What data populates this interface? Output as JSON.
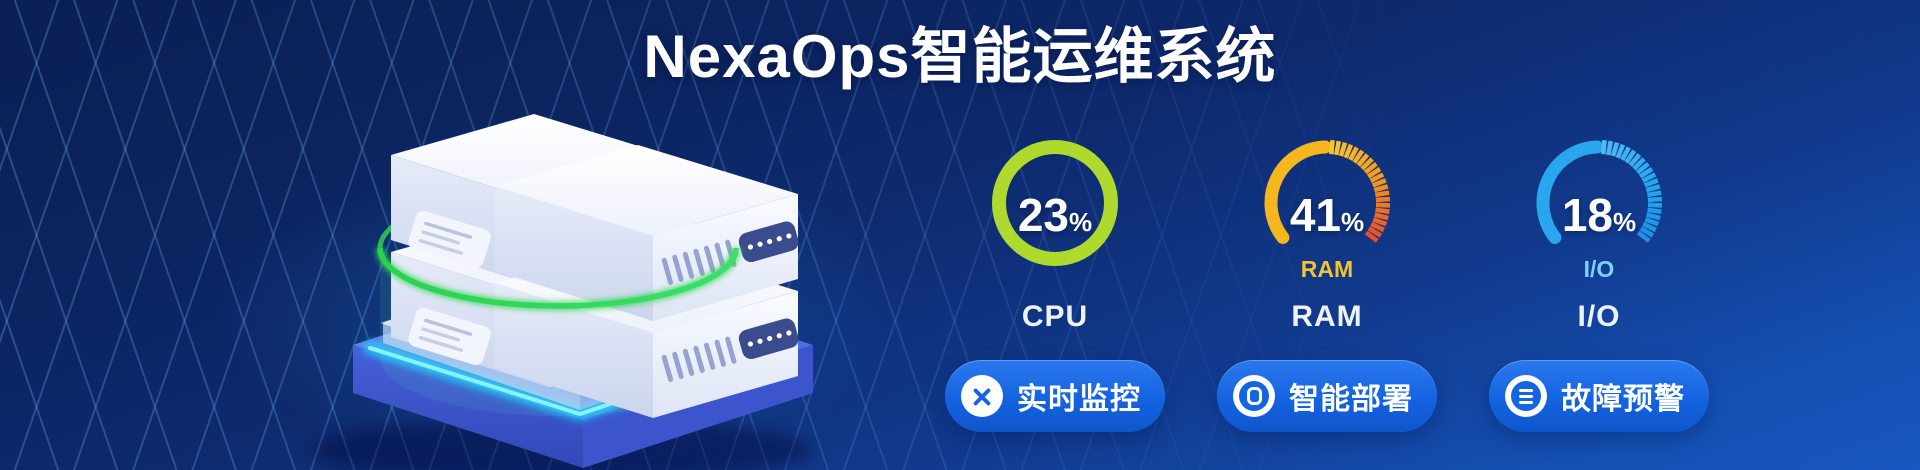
{
  "title": "NexaOps智能运维系统",
  "chart_data": {
    "type": "gauge-set",
    "legend_position": "below",
    "gauges": [
      {
        "label": "CPU",
        "value": 23,
        "unit": "%",
        "style": "ring",
        "color": "#aeda2e",
        "sub_label": "",
        "sub_color": ""
      },
      {
        "label": "RAM",
        "value": 41,
        "unit": "%",
        "style": "speedo",
        "color": "#f5b71d",
        "tick_colors": [
          "#f7c62a",
          "#f3961f",
          "#e84e2a"
        ],
        "sub_label": "RAM",
        "sub_color": "#f4c42c"
      },
      {
        "label": "I/O",
        "value": 18,
        "unit": "%",
        "style": "speedo",
        "color": "#2aa6ef",
        "tick_colors": [
          "#4db9f4",
          "#2aa6ef",
          "#1f90e2"
        ],
        "sub_label": "I/O",
        "sub_color": "#7fd0f8"
      }
    ]
  },
  "buttons": [
    {
      "label": "实时监控",
      "icon": "close-icon"
    },
    {
      "label": "智能部署",
      "icon": "target-icon"
    },
    {
      "label": "故障预警",
      "icon": "list-icon"
    }
  ],
  "illustration": {
    "name": "server-stack-on-glowing-platform",
    "ring_color": "#35d952",
    "platform_glow_color": "#19dcff"
  },
  "colors": {
    "background_top": "#0a1f54",
    "background_bottom": "#1857c0",
    "button_blue": "#1463e0",
    "grid_line": "#6ca0eb"
  }
}
